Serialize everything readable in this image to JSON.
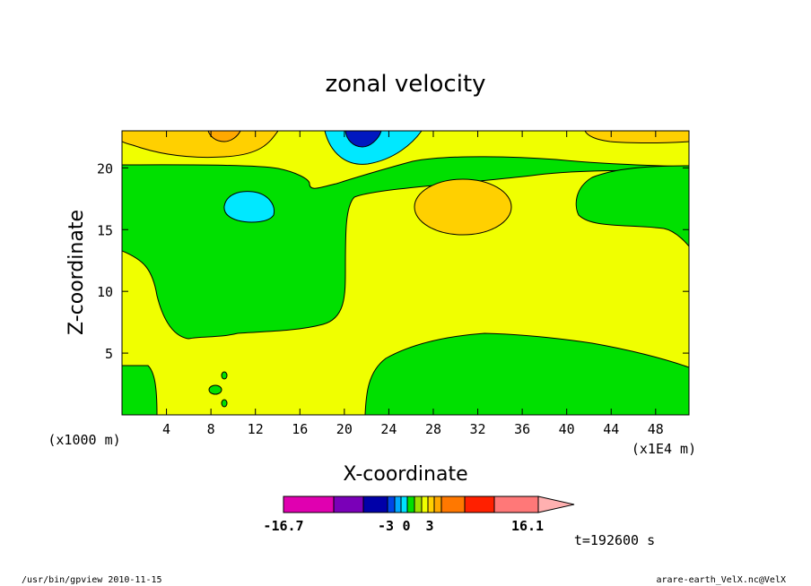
{
  "chart_data": {
    "type": "heatmap",
    "title": "zonal velocity",
    "xlabel": "X-coordinate",
    "ylabel": "Z-coordinate",
    "x_unit_note": "(x1E4 m)",
    "y_unit_note": "(x1000 m)",
    "xlim": [
      0,
      51
    ],
    "ylim": [
      0,
      23
    ],
    "x_ticks": [
      4,
      8,
      12,
      16,
      20,
      24,
      28,
      32,
      36,
      40,
      44,
      48
    ],
    "y_ticks": [
      5,
      10,
      15,
      20
    ],
    "x_tick_labels": [
      "4",
      "8",
      "12",
      "16",
      "20",
      "24",
      "28",
      "32",
      "36",
      "40",
      "44",
      "48"
    ],
    "y_tick_labels": [
      "5",
      "10",
      "15",
      "20"
    ],
    "contour_regions": [
      {
        "category": "yellow",
        "description": "background around 0 to 3"
      },
      {
        "category": "green",
        "label": "left middle band"
      },
      {
        "category": "green",
        "label": "right lower region"
      },
      {
        "category": "green",
        "label": "left bottom strip"
      },
      {
        "category": "green",
        "label": "right upper region"
      },
      {
        "category": "orange",
        "label": "top left maximum"
      },
      {
        "category": "orange",
        "label": "upper middle maximum"
      },
      {
        "category": "cyan",
        "label": "small left minimum"
      },
      {
        "category": "cyan",
        "label": "top center minimum"
      },
      {
        "category": "blue",
        "label": "top center core"
      }
    ],
    "colorbar": {
      "labels": [
        "-16.7",
        "-3",
        "0",
        "3",
        "16.1"
      ],
      "colors": [
        "#e000b0",
        "#7a00b8",
        "#0000a8",
        "#0046e6",
        "#00a8ff",
        "#00e0ff",
        "#00e000",
        "#a0e000",
        "#f0ff00",
        "#ffd000",
        "#ffa800",
        "#ff7800",
        "#ff2000",
        "#ff7878",
        "#ffb0b0"
      ]
    },
    "colors": {
      "yellow": "#f0ff00",
      "green": "#00e000",
      "orange": "#ffd000",
      "cyan": "#00e8ff",
      "blue": "#0018c0",
      "deep_orange": "#ffa800"
    }
  },
  "annotations": {
    "time": "t=192600 s",
    "footer_left": "/usr/bin/gpview  2010-11-15",
    "footer_right": "arare-earth_VelX.nc@VelX"
  }
}
